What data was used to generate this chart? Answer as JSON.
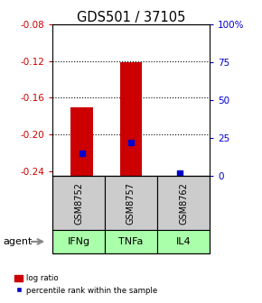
{
  "title": "GDS501 / 37105",
  "samples": [
    "GSM8752",
    "GSM8757",
    "GSM8762"
  ],
  "agents": [
    "IFNg",
    "TNFa",
    "IL4"
  ],
  "log_ratios": [
    -0.17,
    -0.121,
    -0.245
  ],
  "percentile_ranks": [
    15.0,
    22.0,
    2.0
  ],
  "ylim_left": [
    -0.245,
    -0.08
  ],
  "ylim_right": [
    0,
    100
  ],
  "yticks_left": [
    -0.24,
    -0.2,
    -0.16,
    -0.12,
    -0.08
  ],
  "yticks_right": [
    0,
    25,
    50,
    75,
    100
  ],
  "ytick_labels_left": [
    "-0.24",
    "-0.20",
    "-0.16",
    "-0.12",
    "-0.08"
  ],
  "ytick_labels_right": [
    "0",
    "25",
    "50",
    "75",
    "100%"
  ],
  "bar_color": "#cc0000",
  "marker_color": "#0000cc",
  "sample_box_color": "#cccccc",
  "agent_box_color": "#aaffaa",
  "background_color": "#ffffff"
}
